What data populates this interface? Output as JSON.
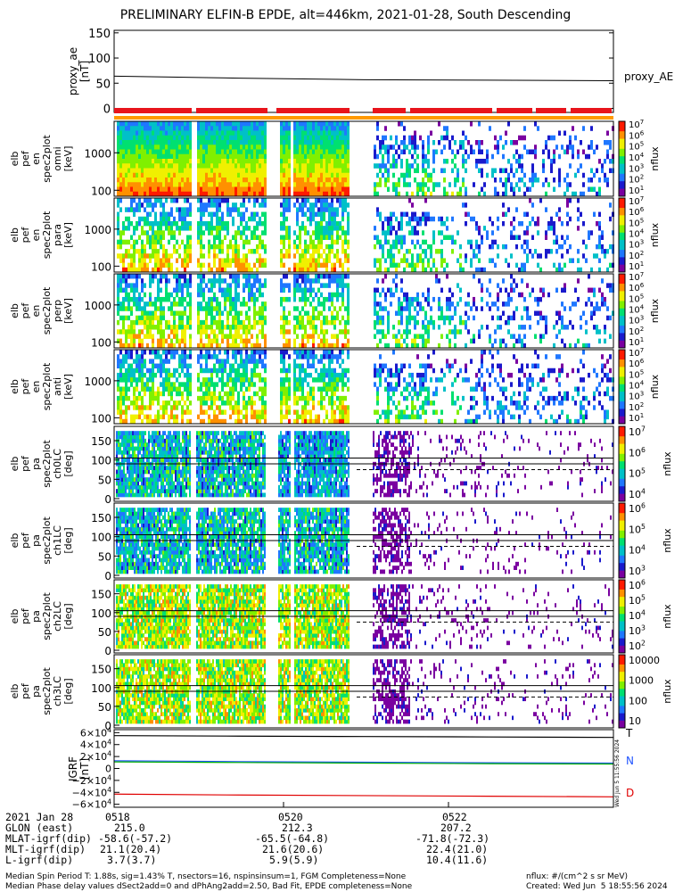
{
  "title": "PRELIMINARY ELFIN-B EPDE, alt=446km, 2021-01-28, South Descending",
  "chart_data": [
    {
      "type": "line",
      "panel": "proxy_ae",
      "ylabel_lines": [
        "proxy_ae",
        "[nT]"
      ],
      "ylim": [
        -8,
        155
      ],
      "yticks": [
        "150",
        "100",
        "50",
        "0"
      ],
      "ytick_values": [
        150,
        100,
        50,
        0
      ],
      "x": [
        0,
        0.25,
        0.5,
        0.75,
        1
      ],
      "series": [
        {
          "name": "proxy_AE",
          "color": "#000000",
          "values": [
            64,
            60,
            57,
            56,
            55
          ]
        }
      ]
    },
    {
      "type": "heatmap",
      "panel": "elb_pef_en_spec2plot_omni",
      "ylabel_lines": [
        "elb",
        "pef",
        "en",
        "spec2plot",
        "omni",
        "[keV]"
      ],
      "yticks": [
        "1000",
        "100"
      ],
      "colorbar_label": "nflux",
      "colorbar_ticks": [
        "10^7",
        "10^6",
        "10^5",
        "10^4",
        "10^3",
        "10^2",
        "10^1"
      ]
    },
    {
      "type": "heatmap",
      "panel": "elb_pef_en_spec2plot_para",
      "ylabel_lines": [
        "elb",
        "pef",
        "en",
        "spec2plot",
        "para",
        "[keV]"
      ],
      "yticks": [
        "1000",
        "100"
      ],
      "colorbar_label": "nflux",
      "colorbar_ticks": [
        "10^7",
        "10^6",
        "10^5",
        "10^4",
        "10^3",
        "10^2",
        "10^1"
      ]
    },
    {
      "type": "heatmap",
      "panel": "elb_pef_en_spec2plot_perp",
      "ylabel_lines": [
        "elb",
        "pef",
        "en",
        "spec2plot",
        "perp",
        "[keV]"
      ],
      "yticks": [
        "1000",
        "100"
      ],
      "colorbar_label": "nflux",
      "colorbar_ticks": [
        "10^7",
        "10^6",
        "10^5",
        "10^4",
        "10^3",
        "10^2",
        "10^1"
      ]
    },
    {
      "type": "heatmap",
      "panel": "elb_pef_en_spec2plot_anti",
      "ylabel_lines": [
        "elb",
        "pef",
        "en",
        "spec2plot",
        "anti",
        "[keV]"
      ],
      "yticks": [
        "1000",
        "100"
      ],
      "colorbar_label": "nflux",
      "colorbar_ticks": [
        "10^7",
        "10^6",
        "10^5",
        "10^4",
        "10^3",
        "10^2",
        "10^1"
      ]
    },
    {
      "type": "heatmap",
      "panel": "elb_pef_pa_spec2plot_ch0LC",
      "ylabel_lines": [
        "elb",
        "pef",
        "pa",
        "spec2plot",
        "ch0LC",
        "[deg]"
      ],
      "yticks": [
        "150",
        "100",
        "50",
        "0"
      ],
      "colorbar_label": "nflux",
      "colorbar_ticks": [
        "10^7",
        "10^6",
        "10^5",
        "10^4"
      ]
    },
    {
      "type": "heatmap",
      "panel": "elb_pef_pa_spec2plot_ch1LC",
      "ylabel_lines": [
        "elb",
        "pef",
        "pa",
        "spec2plot",
        "ch1LC",
        "[deg]"
      ],
      "yticks": [
        "150",
        "100",
        "50",
        "0"
      ],
      "colorbar_label": "nflux",
      "colorbar_ticks": [
        "10^6",
        "10^5",
        "10^4",
        "10^3"
      ]
    },
    {
      "type": "heatmap",
      "panel": "elb_pef_pa_spec2plot_ch2LC",
      "ylabel_lines": [
        "elb",
        "pef",
        "pa",
        "spec2plot",
        "ch2LC",
        "[deg]"
      ],
      "yticks": [
        "150",
        "100",
        "50",
        "0"
      ],
      "colorbar_label": "nflux",
      "colorbar_ticks": [
        "10^6",
        "10^5",
        "10^4",
        "10^3",
        "10^2"
      ]
    },
    {
      "type": "heatmap",
      "panel": "elb_pef_pa_spec2plot_ch3LC",
      "ylabel_lines": [
        "elb",
        "pef",
        "pa",
        "spec2plot",
        "ch3LC",
        "[deg]"
      ],
      "yticks": [
        "150",
        "100",
        "50",
        "0"
      ],
      "colorbar_label": "nflux",
      "colorbar_ticks": [
        "10000",
        "1000",
        "100",
        "10"
      ]
    },
    {
      "type": "line",
      "panel": "IGRF",
      "ylabel_lines": [
        "IGRF",
        "[nT]"
      ],
      "ylim": [
        -65000,
        65000
      ],
      "yticks": [
        "6×10^4",
        "4×10^4",
        "2×10^4",
        "0",
        "−2×10^4",
        "−4×10^4",
        "−6×10^4"
      ],
      "ytick_values": [
        60000,
        40000,
        20000,
        0,
        -20000,
        -40000,
        -60000
      ],
      "x": [
        0,
        0.25,
        0.5,
        0.75,
        1
      ],
      "series": [
        {
          "name": "T",
          "color": "#000000",
          "values": [
            55000,
            54200,
            53500,
            52800,
            52000
          ]
        },
        {
          "name": "N",
          "color": "#2255ff",
          "values": [
            13000,
            11500,
            10500,
            9500,
            9000
          ]
        },
        {
          "name": "",
          "color": "#00b000",
          "values": [
            11000,
            10000,
            9000,
            8000,
            7500
          ]
        },
        {
          "name": "D",
          "color": "#e00000",
          "values": [
            -43000,
            -44500,
            -45500,
            -46500,
            -47500
          ]
        }
      ]
    }
  ],
  "axis_labels": {
    "proxy_ae_legend": "proxy_AE",
    "igrf_T": "T",
    "igrf_N": "N",
    "igrf_D": "D",
    "timestamp_vertical": "Wed Jun  5 11:55:56 2024"
  },
  "ephemeris": {
    "date_label": "2021 Jan 28",
    "rows": [
      {
        "label": "GLON (east)",
        "values": [
          "215.0",
          "212.3",
          "207.2"
        ]
      },
      {
        "label": "MLAT-igrf(dip)",
        "values": [
          "-58.6(-57.2)",
          "-65.5(-64.8)",
          "-71.8(-72.3)"
        ]
      },
      {
        "label": "MLT-igrf(dip)",
        "values": [
          "21.1(20.4)",
          "21.6(20.6)",
          "22.4(21.0)"
        ]
      },
      {
        "label": "L-igrf(dip)",
        "values": [
          "3.7(3.7)",
          "5.9(5.9)",
          "10.4(11.6)"
        ]
      }
    ],
    "times": [
      "0518",
      "0520",
      "0522"
    ]
  },
  "footer": {
    "left1": "Median Spin Period T: 1.88s, sig=1.43% T, nsectors=16, nspinsinsum=1, FGM Completeness=None",
    "left2": "Median Phase delay values dSect2add=0 and dPhAng2add=2.50, Bad Fit, EPDE completeness=None",
    "right1": "nflux: #/(cm^2 s sr MeV)",
    "right2": "Created: Wed Jun  5 18:55:56 2024"
  },
  "colors": {
    "bar_red": "#e8141c",
    "bar_orange": "#ff9900",
    "colormap": [
      "#7a00a0",
      "#1a1acc",
      "#1f77ff",
      "#00c0c8",
      "#00e070",
      "#80f000",
      "#f0f000",
      "#ff9000",
      "#ff1a00"
    ]
  }
}
